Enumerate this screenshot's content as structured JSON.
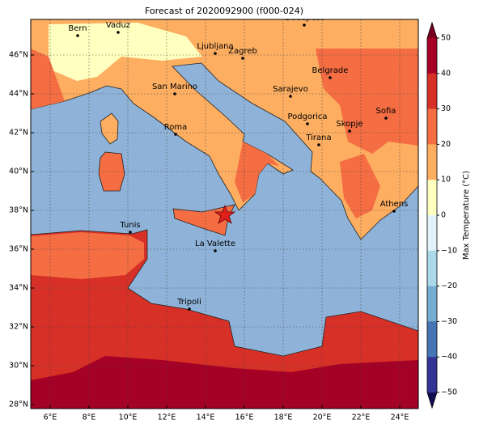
{
  "title": "Forecast of 2020092900 (f000-024)",
  "map": {
    "lon_ticks": [
      "6°E",
      "8°E",
      "10°E",
      "12°E",
      "14°E",
      "16°E",
      "18°E",
      "20°E",
      "22°E",
      "24°E"
    ],
    "lat_ticks": [
      "46°N",
      "44°N",
      "42°N",
      "40°N",
      "38°N",
      "36°N",
      "34°N",
      "32°N",
      "30°N",
      "28°N"
    ],
    "cities": [
      "Bern",
      "Vaduz",
      "Budapest",
      "Ljubljana",
      "Zagreb",
      "Belgrade",
      "San Marino",
      "Sarajevo",
      "Sofia",
      "Podgorica",
      "Skopje",
      "Roma",
      "Tirana",
      "Athens",
      "Tunis",
      "La Valette",
      "Tripoli"
    ]
  },
  "colorbar": {
    "label": "Max Temperature (°C)",
    "ticks": [
      "50",
      "40",
      "30",
      "20",
      "10",
      "0",
      "−10",
      "−20",
      "−30",
      "−40",
      "−50"
    ],
    "colors": [
      "#a50026",
      "#d73027",
      "#f46d43",
      "#fdae61",
      "#ffffbf",
      "#e0f3f8",
      "#abd9e9",
      "#74add1",
      "#4575b4",
      "#313695"
    ],
    "over_color": "#7a0020",
    "under_color": "#0d0d50"
  }
}
